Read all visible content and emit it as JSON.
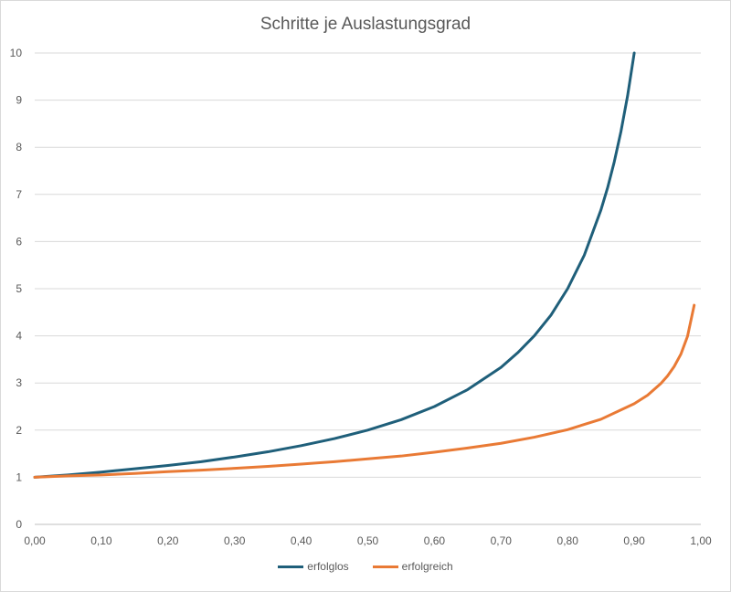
{
  "chart_data": {
    "type": "line",
    "title": "Schritte je Auslastungsgrad",
    "xlabel": "",
    "ylabel": "",
    "xlim": [
      0,
      1
    ],
    "ylim": [
      0,
      10
    ],
    "grid": true,
    "legend_position": "bottom",
    "x_ticks": [
      "0,00",
      "0,10",
      "0,20",
      "0,30",
      "0,40",
      "0,50",
      "0,60",
      "0,70",
      "0,80",
      "0,90",
      "1,00"
    ],
    "y_ticks": [
      "0",
      "1",
      "2",
      "3",
      "4",
      "5",
      "6",
      "7",
      "8",
      "9",
      "10"
    ],
    "series": [
      {
        "name": "erfolglos",
        "color": "#1f5f7a",
        "x": [
          0,
          0.05,
          0.1,
          0.15,
          0.2,
          0.25,
          0.3,
          0.35,
          0.4,
          0.45,
          0.5,
          0.55,
          0.6,
          0.65,
          0.7,
          0.725,
          0.75,
          0.775,
          0.8,
          0.825,
          0.85,
          0.86,
          0.87,
          0.88,
          0.89,
          0.9
        ],
        "y": [
          1.0,
          1.05,
          1.11,
          1.18,
          1.25,
          1.33,
          1.43,
          1.54,
          1.67,
          1.82,
          2.0,
          2.22,
          2.5,
          2.86,
          3.33,
          3.64,
          4.0,
          4.44,
          5.0,
          5.71,
          6.67,
          7.14,
          7.69,
          8.33,
          9.09,
          10.0
        ]
      },
      {
        "name": "erfolgreich",
        "color": "#e97a35",
        "x": [
          0,
          0.05,
          0.1,
          0.15,
          0.2,
          0.25,
          0.3,
          0.35,
          0.4,
          0.45,
          0.5,
          0.55,
          0.6,
          0.65,
          0.7,
          0.75,
          0.8,
          0.85,
          0.9,
          0.92,
          0.94,
          0.95,
          0.96,
          0.97,
          0.98,
          0.99
        ],
        "y": [
          1.0,
          1.03,
          1.05,
          1.08,
          1.12,
          1.15,
          1.19,
          1.23,
          1.28,
          1.33,
          1.39,
          1.45,
          1.53,
          1.62,
          1.72,
          1.85,
          2.01,
          2.23,
          2.56,
          2.74,
          2.99,
          3.15,
          3.35,
          3.61,
          3.99,
          4.65
        ]
      }
    ]
  }
}
